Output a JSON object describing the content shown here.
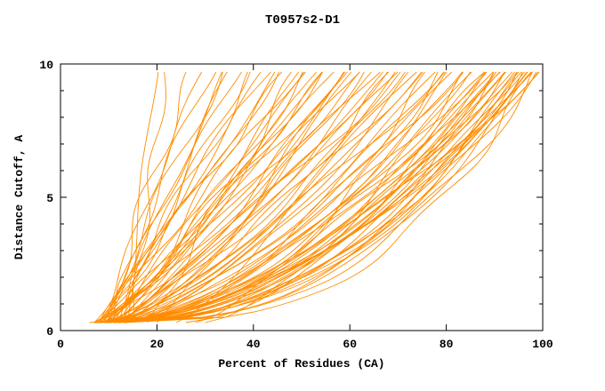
{
  "frame": {
    "background": "#ffffff",
    "axis_color": "#000000",
    "text_color": "#000000"
  },
  "chart_data": {
    "type": "line",
    "title": "T0957s2-D1",
    "xlabel": "Percent of Residues (CA)",
    "ylabel": "Distance Cutoff, A",
    "xlim": [
      0,
      100
    ],
    "ylim": [
      0,
      10
    ],
    "x_ticks": [
      0,
      20,
      40,
      60,
      80,
      100
    ],
    "y_ticks": [
      0,
      5,
      10
    ],
    "y_minor_ticks": [
      1,
      2,
      3,
      4,
      6,
      7,
      8,
      9
    ],
    "grid": false,
    "legend": false,
    "curve_color": "#ff8c00",
    "y_draw_range": [
      0.3,
      9.7
    ],
    "curve_encoding": [
      "start_percent_at_0A",
      "percent_at_10A",
      "shape_exponent"
    ],
    "curves": [
      [
        14,
        20,
        1.15
      ],
      [
        15,
        22,
        1.05
      ],
      [
        10,
        28,
        1.2
      ],
      [
        9,
        30,
        1.1
      ],
      [
        11,
        32,
        1.25
      ],
      [
        8,
        34,
        1.0
      ],
      [
        12,
        35,
        1.15
      ],
      [
        10,
        36,
        0.95
      ],
      [
        9,
        38,
        1.1
      ],
      [
        13,
        40,
        1.2
      ],
      [
        8,
        41,
        0.95
      ],
      [
        11,
        43,
        1.05
      ],
      [
        10,
        44,
        1.15
      ],
      [
        12,
        45,
        0.9
      ],
      [
        7,
        46,
        0.95
      ],
      [
        9,
        48,
        1.05
      ],
      [
        11,
        50,
        0.85
      ],
      [
        8,
        51,
        1.0
      ],
      [
        10,
        52,
        0.9
      ],
      [
        12,
        53,
        1.1
      ],
      [
        9,
        54,
        0.8
      ],
      [
        13,
        55,
        0.95
      ],
      [
        7,
        56,
        0.85
      ],
      [
        10,
        57,
        1.0
      ],
      [
        8,
        58,
        0.9
      ],
      [
        11,
        59,
        0.75
      ],
      [
        9,
        60,
        0.95
      ],
      [
        12,
        61,
        0.85
      ],
      [
        10,
        62,
        0.7
      ],
      [
        8,
        63,
        0.9
      ],
      [
        13,
        64,
        0.8
      ],
      [
        9,
        65,
        0.95
      ],
      [
        11,
        66,
        0.7
      ],
      [
        7,
        67,
        0.85
      ],
      [
        10,
        68,
        0.75
      ],
      [
        12,
        69,
        0.9
      ],
      [
        8,
        70,
        0.65
      ],
      [
        9,
        71,
        0.8
      ],
      [
        11,
        72,
        0.7
      ],
      [
        7,
        73,
        0.85
      ],
      [
        10,
        74,
        0.6
      ],
      [
        12,
        75,
        0.75
      ],
      [
        8,
        76,
        0.65
      ],
      [
        9,
        77,
        0.8
      ],
      [
        11,
        78,
        0.55
      ],
      [
        13,
        79,
        0.7
      ],
      [
        7,
        80,
        0.6
      ],
      [
        10,
        81,
        0.75
      ],
      [
        8,
        82,
        0.5
      ],
      [
        12,
        83,
        0.65
      ],
      [
        9,
        84,
        0.55
      ],
      [
        11,
        85,
        0.7
      ],
      [
        7,
        86,
        0.5
      ],
      [
        10,
        87,
        0.6
      ],
      [
        13,
        88,
        0.45
      ],
      [
        8,
        89,
        0.65
      ],
      [
        9,
        90,
        0.5
      ],
      [
        11,
        90,
        0.6
      ],
      [
        7,
        91,
        0.45
      ],
      [
        10,
        91,
        0.55
      ],
      [
        12,
        92,
        0.5
      ],
      [
        8,
        92,
        0.6
      ],
      [
        9,
        93,
        0.42
      ],
      [
        11,
        93,
        0.55
      ],
      [
        7,
        94,
        0.48
      ],
      [
        10,
        94,
        0.6
      ],
      [
        13,
        95,
        0.4
      ],
      [
        8,
        95,
        0.52
      ],
      [
        9,
        96,
        0.45
      ],
      [
        12,
        96,
        0.58
      ],
      [
        7,
        97,
        0.4
      ],
      [
        10,
        97,
        0.5
      ],
      [
        11,
        97,
        0.44
      ],
      [
        8,
        98,
        0.55
      ],
      [
        9,
        98,
        0.38
      ],
      [
        12,
        98,
        0.48
      ],
      [
        7,
        99,
        0.42
      ],
      [
        10,
        99,
        0.52
      ],
      [
        13,
        99,
        0.36
      ],
      [
        8,
        100,
        0.45
      ],
      [
        9,
        100,
        0.55
      ],
      [
        11,
        100,
        0.4
      ],
      [
        6,
        100,
        0.5
      ],
      [
        20,
        60,
        0.9
      ],
      [
        24,
        70,
        0.8
      ],
      [
        28,
        80,
        0.7
      ],
      [
        18,
        50,
        1.0
      ],
      [
        26,
        92,
        0.6
      ],
      [
        30,
        85,
        0.65
      ]
    ]
  }
}
